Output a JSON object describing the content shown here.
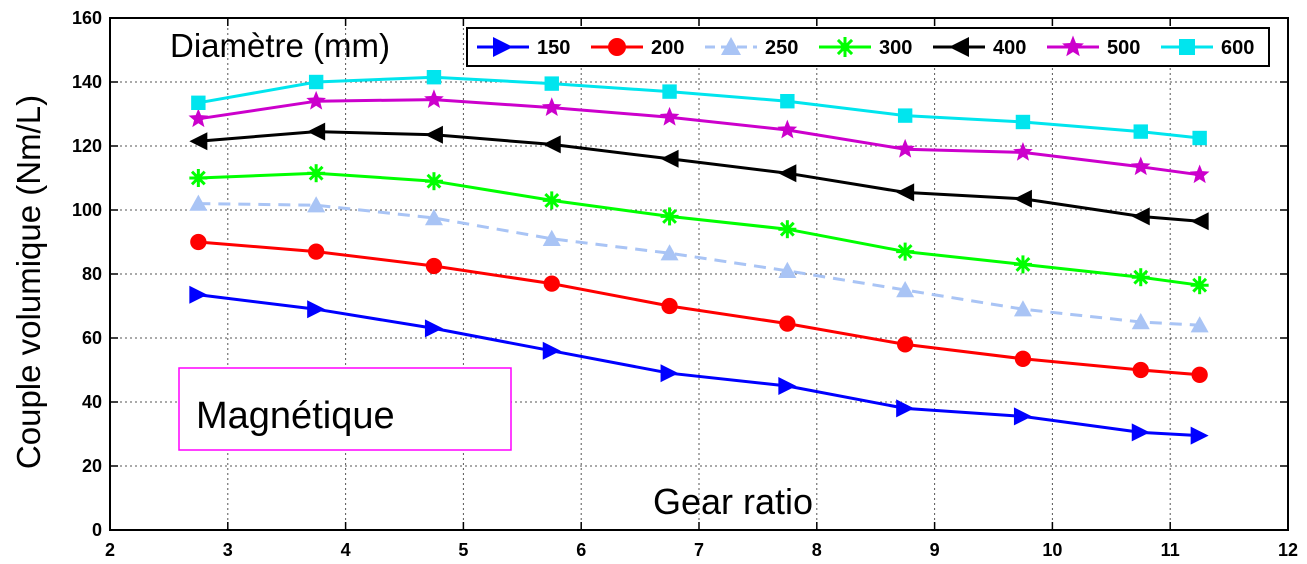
{
  "chart_data": {
    "type": "line",
    "xlabel": "Gear ratio",
    "ylabel": "Couple volumique (Nm/L)",
    "legend_title": "Diamètre (mm)",
    "annotation": "Magnétique",
    "xlim": [
      2,
      12
    ],
    "ylim": [
      0,
      160
    ],
    "xticks": [
      2,
      3,
      4,
      5,
      6,
      7,
      8,
      9,
      10,
      11,
      12
    ],
    "yticks": [
      0,
      20,
      40,
      60,
      80,
      100,
      120,
      140,
      160
    ],
    "grid": true,
    "legend_position": "top",
    "x": [
      2.75,
      3.75,
      4.75,
      5.75,
      6.75,
      7.75,
      8.75,
      9.75,
      10.75,
      11.25
    ],
    "series": [
      {
        "name": "150",
        "color": "#0000ff",
        "marker": "triangle-right",
        "dashed": false,
        "values": [
          73.5,
          69,
          63,
          56,
          49,
          45,
          38,
          35.5,
          30.5,
          29.5
        ]
      },
      {
        "name": "200",
        "color": "#ff0000",
        "marker": "circle",
        "dashed": false,
        "values": [
          90,
          87,
          82.5,
          77,
          70,
          64.5,
          58,
          53.5,
          50,
          48.5
        ]
      },
      {
        "name": "250",
        "color": "#a9c4f5",
        "marker": "triangle-up",
        "dashed": true,
        "values": [
          102,
          101.5,
          97.5,
          91,
          86.5,
          81,
          75,
          69,
          65,
          64
        ]
      },
      {
        "name": "300",
        "color": "#00ff00",
        "marker": "asterisk",
        "dashed": false,
        "values": [
          110,
          111.5,
          109,
          103,
          98,
          94,
          87,
          83,
          79,
          76.5
        ]
      },
      {
        "name": "400",
        "color": "#000000",
        "marker": "triangle-left",
        "dashed": false,
        "values": [
          121.5,
          124.5,
          123.5,
          120.5,
          116,
          111.5,
          105.5,
          103.5,
          98,
          96.5
        ]
      },
      {
        "name": "500",
        "color": "#cc00cc",
        "marker": "star",
        "dashed": false,
        "values": [
          128.5,
          134,
          134.5,
          132,
          129,
          125,
          119,
          118,
          113.5,
          111
        ]
      },
      {
        "name": "600",
        "color": "#00e5ee",
        "marker": "square",
        "dashed": false,
        "values": [
          133.5,
          140,
          141.5,
          139.5,
          137,
          134,
          129.5,
          127.5,
          124.5,
          122.5
        ]
      }
    ]
  }
}
